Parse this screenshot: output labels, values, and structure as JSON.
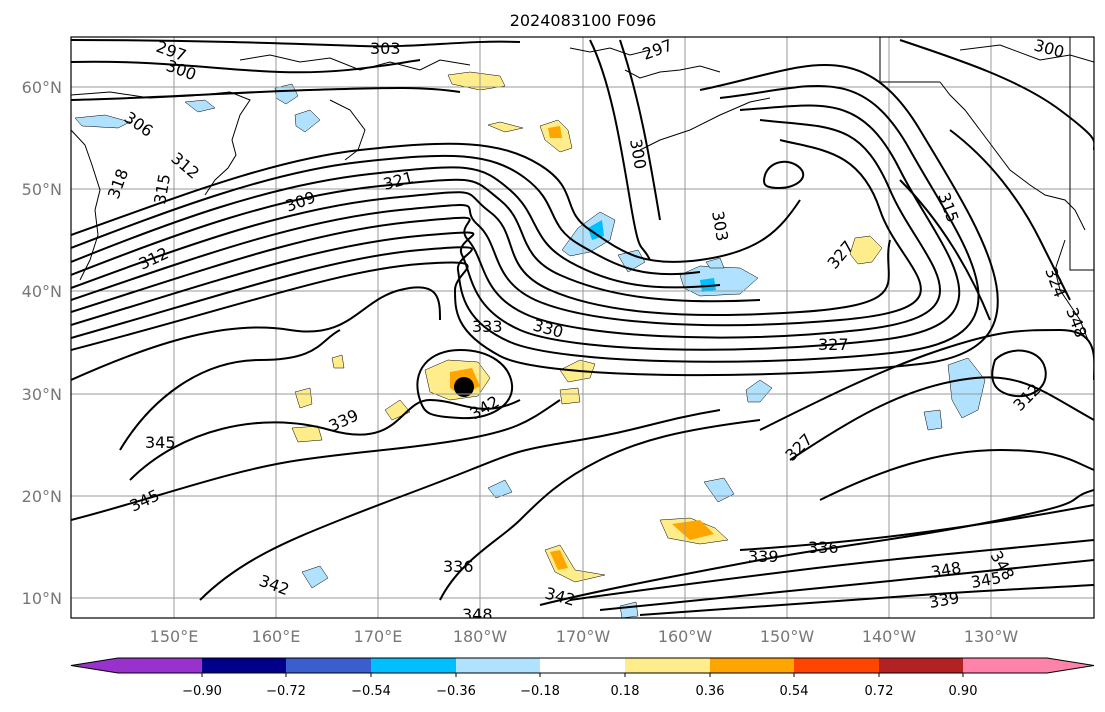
{
  "title": "2024083100 F096",
  "lat_labels": [
    "60°N",
    "50°N",
    "40°N",
    "30°N",
    "20°N",
    "10°N"
  ],
  "lon_labels": [
    "150°E",
    "160°E",
    "170°E",
    "180°W",
    "170°W",
    "160°W",
    "150°W",
    "140°W",
    "130°W"
  ],
  "colorbar": {
    "ticks": [
      "−0.90",
      "−0.72",
      "−0.54",
      "−0.36",
      "−0.18",
      "0.18",
      "0.36",
      "0.54",
      "0.72",
      "0.90"
    ],
    "colors": [
      "#9932cc",
      "#00008b",
      "#3a5fcd",
      "#00bfff",
      "#b0e2ff",
      "#ffffff",
      "#ffec8b",
      "#ffa500",
      "#ff4500",
      "#b22222",
      "#ff82ab"
    ]
  },
  "contour_labels": [
    "297",
    "300",
    "303",
    "297",
    "300",
    "306",
    "312",
    "318",
    "315",
    "309",
    "321",
    "300",
    "303",
    "312",
    "315",
    "327",
    "333",
    "330",
    "327",
    "312",
    "339",
    "342",
    "345",
    "345",
    "327",
    "342",
    "336",
    "339",
    "336",
    "348",
    "342",
    "348",
    "345",
    "339",
    "348",
    "348",
    "324"
  ]
}
